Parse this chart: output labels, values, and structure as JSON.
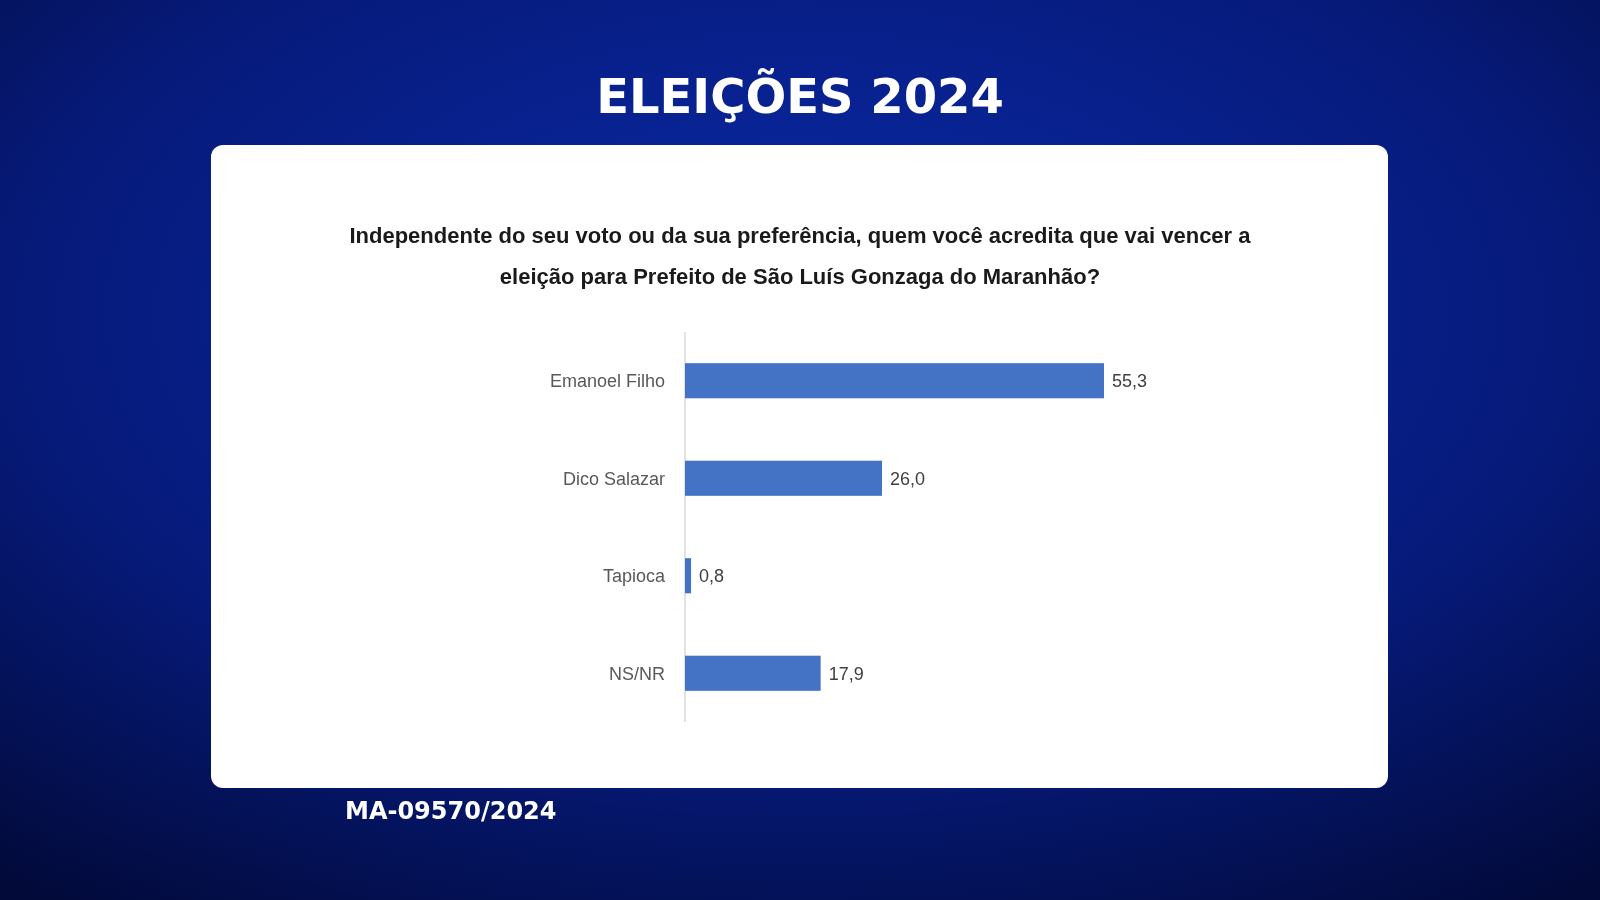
{
  "chart_data": {
    "type": "bar",
    "orientation": "horizontal",
    "title": "ELEIÇÕES 2024",
    "subtitle": "Independente do seu voto ou da sua preferência, quem você acredita que vai vencer a eleição para Prefeito de São Luís Gonzaga do Maranhão?",
    "categories": [
      "Emanoel Filho",
      "Dico Salazar",
      "Tapioca",
      "NS/NR"
    ],
    "values": [
      55.3,
      26.0,
      0.8,
      17.9
    ],
    "color": "#4472c4",
    "value_labels": [
      "55,3",
      "26,0",
      "0,8",
      "17,9"
    ],
    "annotations": [
      "MA-09570/2024"
    ]
  }
}
